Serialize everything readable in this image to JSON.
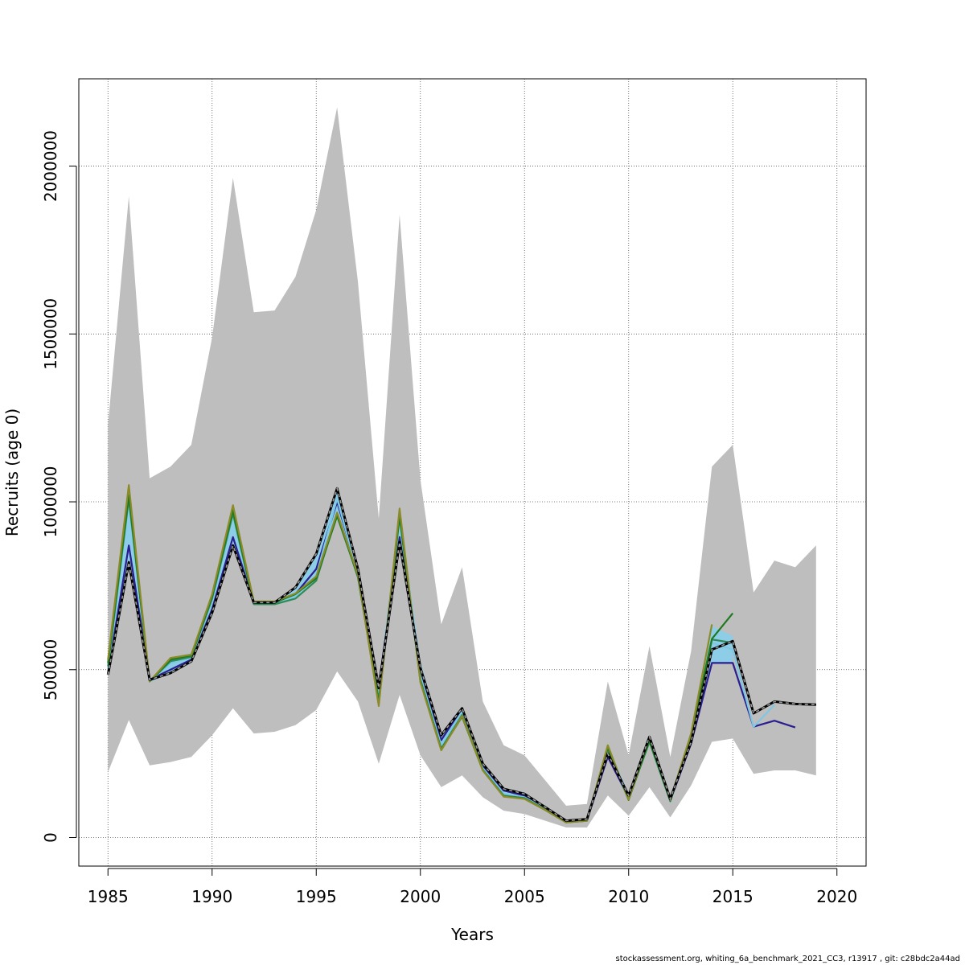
{
  "footer_text": "stockassessment.org, whiting_6a_benchmark_2021_CC3, r13917 , git: c28bdc2a44ad",
  "chart_data": {
    "type": "line",
    "title": "",
    "xlabel": "Years",
    "ylabel": "Recruits (age 0)",
    "xlim": [
      1983.6,
      2021.4
    ],
    "ylim": [
      -85000,
      2260000
    ],
    "x_ticks": [
      1985,
      1990,
      1995,
      2000,
      2005,
      2010,
      2015,
      2020
    ],
    "y_ticks": [
      0,
      500000,
      1000000,
      1500000,
      2000000
    ],
    "x_tick_labels": [
      "1985",
      "1990",
      "1995",
      "2000",
      "2005",
      "2010",
      "2015",
      "2020"
    ],
    "y_tick_labels": [
      "0",
      "500000",
      "1000000",
      "1500000",
      "2000000"
    ],
    "grid": true,
    "grid_style": "dotted",
    "legend": "none",
    "confidence_band": {
      "color": "#bebebe",
      "x": [
        1985,
        1986,
        1987,
        1988,
        1989,
        1990,
        1991,
        1992,
        1993,
        1994,
        1995,
        1996,
        1997,
        1998,
        1999,
        2000,
        2001,
        2002,
        2003,
        2004,
        2005,
        2006,
        2007,
        2008,
        2009,
        2010,
        2011,
        2012,
        2013,
        2014,
        2015,
        2016,
        2017,
        2018,
        2019
      ],
      "upper": [
        1230000,
        1910000,
        1070000,
        1105000,
        1170000,
        1490000,
        1965000,
        1565000,
        1570000,
        1670000,
        1870000,
        2175000,
        1655000,
        950000,
        1855000,
        1065000,
        635000,
        805000,
        405000,
        275000,
        245000,
        170000,
        95000,
        100000,
        465000,
        245000,
        570000,
        240000,
        555000,
        1105000,
        1170000,
        730000,
        825000,
        805000,
        870000
      ],
      "lower": [
        195000,
        350000,
        215000,
        225000,
        240000,
        305000,
        385000,
        310000,
        315000,
        335000,
        380000,
        495000,
        405000,
        220000,
        425000,
        245000,
        150000,
        185000,
        120000,
        80000,
        70000,
        50000,
        30000,
        30000,
        125000,
        65000,
        150000,
        60000,
        155000,
        285000,
        295000,
        190000,
        200000,
        200000,
        185000
      ]
    },
    "inner_band": {
      "color": "#87ceeb",
      "x": [
        1985,
        1986,
        1987,
        1988,
        1989,
        1990,
        1991,
        1992,
        1993,
        1994,
        1995,
        1996,
        1997,
        1998,
        1999,
        2000,
        2001,
        2002,
        2003,
        2004,
        2005,
        2006,
        2007,
        2008,
        2009,
        2010,
        2011,
        2012,
        2013,
        2014,
        2015
      ],
      "upper": [
        525000,
        1050000,
        470000,
        535000,
        550000,
        730000,
        990000,
        705000,
        705000,
        745000,
        840000,
        1040000,
        800000,
        455000,
        980000,
        525000,
        305000,
        385000,
        220000,
        145000,
        135000,
        90000,
        50000,
        55000,
        280000,
        130000,
        305000,
        120000,
        310000,
        630000,
        600000
      ],
      "lower": [
        485000,
        820000,
        462000,
        490000,
        520000,
        660000,
        870000,
        695000,
        695000,
        715000,
        765000,
        955000,
        780000,
        395000,
        895000,
        460000,
        260000,
        355000,
        200000,
        125000,
        120000,
        85000,
        45000,
        50000,
        240000,
        110000,
        280000,
        105000,
        280000,
        520000,
        520000
      ]
    },
    "series": [
      {
        "color": "#000000",
        "dashed": true,
        "x": [
          1985,
          1986,
          1987,
          1988,
          1989,
          1990,
          1991,
          1992,
          1993,
          1994,
          1995,
          1996,
          1997,
          1998,
          1999,
          2000,
          2001,
          2002,
          2003,
          2004,
          2005,
          2006,
          2007,
          2008,
          2009,
          2010,
          2011,
          2012,
          2013,
          2014,
          2015,
          2016,
          2017,
          2018,
          2019
        ],
        "values": [
          485000,
          820000,
          470000,
          490000,
          525000,
          670000,
          870000,
          700000,
          700000,
          745000,
          845000,
          1040000,
          800000,
          445000,
          880000,
          505000,
          305000,
          385000,
          220000,
          145000,
          130000,
          90000,
          50000,
          55000,
          250000,
          125000,
          300000,
          115000,
          285000,
          560000,
          585000,
          370000,
          405000,
          398000,
          396000
        ]
      },
      {
        "color": "#2b1e8f",
        "dashed": false,
        "x": [
          1985,
          1986,
          1987,
          1988,
          1989,
          1990,
          1991,
          1992,
          1993,
          1994,
          1995,
          1996,
          1997,
          1998,
          1999,
          2000,
          2001,
          2002,
          2003,
          2004,
          2005,
          2006,
          2007,
          2008,
          2009,
          2010,
          2011,
          2012,
          2013,
          2014,
          2015,
          2016,
          2017,
          2018
        ],
        "values": [
          490000,
          870000,
          470000,
          500000,
          530000,
          680000,
          895000,
          700000,
          700000,
          725000,
          800000,
          1000000,
          790000,
          450000,
          895000,
          500000,
          290000,
          385000,
          215000,
          140000,
          125000,
          88000,
          48000,
          52000,
          240000,
          120000,
          290000,
          110000,
          280000,
          520000,
          520000,
          330000,
          348000,
          328000
        ]
      },
      {
        "color": "#7ec8e3",
        "dashed": false,
        "x": [
          1985,
          1986,
          1987,
          1988,
          1989,
          1990,
          1991,
          1992,
          1993,
          1994,
          1995,
          1996,
          1997,
          1998,
          1999,
          2000,
          2001,
          2002,
          2003,
          2004,
          2005,
          2006,
          2007,
          2008,
          2009,
          2010,
          2011,
          2012,
          2013,
          2014,
          2015,
          2016,
          2017
        ],
        "values": [
          500000,
          1000000,
          465000,
          520000,
          535000,
          705000,
          960000,
          697000,
          697000,
          720000,
          780000,
          1010000,
          785000,
          420000,
          950000,
          480000,
          275000,
          375000,
          205000,
          130000,
          120000,
          85000,
          47000,
          52000,
          262000,
          118000,
          285000,
          108000,
          295000,
          580000,
          560000,
          330000,
          395000
        ]
      },
      {
        "color": "#2e8b57",
        "dashed": false,
        "x": [
          1985,
          1986,
          1987,
          1988,
          1989,
          1990,
          1991,
          1992,
          1993,
          1994,
          1995,
          1996,
          1997,
          1998,
          1999,
          2000,
          2001,
          2002,
          2003,
          2004,
          2005,
          2006,
          2007,
          2008,
          2009,
          2010,
          2011,
          2012,
          2013,
          2014,
          2015
        ],
        "values": [
          510000,
          1010000,
          465000,
          525000,
          538000,
          712000,
          965000,
          695000,
          695000,
          712000,
          765000,
          965000,
          775000,
          410000,
          955000,
          470000,
          265000,
          365000,
          202000,
          125000,
          118000,
          83000,
          46000,
          51000,
          265000,
          115000,
          285000,
          108000,
          300000,
          590000,
          580000
        ]
      },
      {
        "color": "#1f7a1f",
        "dashed": false,
        "x": [
          1985,
          1986,
          1987,
          1988,
          1989,
          1990,
          1991,
          1992,
          1993,
          1994,
          1995,
          1996,
          1997,
          1998,
          1999,
          2000,
          2001,
          2002,
          2003,
          2004,
          2005,
          2006,
          2007,
          2008,
          2009,
          2010,
          2011,
          2012,
          2013,
          2014,
          2015
        ],
        "values": [
          520000,
          1020000,
          465000,
          530000,
          542000,
          718000,
          975000,
          700000,
          700000,
          725000,
          772000,
          958000,
          778000,
          400000,
          960000,
          465000,
          262000,
          360000,
          200000,
          123000,
          116000,
          82000,
          45000,
          50000,
          268000,
          112000,
          290000,
          110000,
          305000,
          592000,
          668000
        ]
      },
      {
        "color": "#8b8b2a",
        "dashed": false,
        "x": [
          1985,
          1986,
          1987,
          1988,
          1989,
          1990,
          1991,
          1992,
          1993,
          1994,
          1995,
          1996,
          1997,
          1998,
          1999,
          2000,
          2001,
          2002,
          2003,
          2004,
          2005,
          2006,
          2007,
          2008,
          2009,
          2010,
          2011,
          2012,
          2013,
          2014
        ],
        "values": [
          530000,
          1050000,
          465000,
          535000,
          545000,
          725000,
          990000,
          703000,
          703000,
          727000,
          778000,
          968000,
          782000,
          392000,
          980000,
          462000,
          260000,
          362000,
          200000,
          122000,
          115000,
          82000,
          45000,
          50000,
          275000,
          113000,
          300000,
          112000,
          310000,
          635000
        ]
      }
    ]
  }
}
